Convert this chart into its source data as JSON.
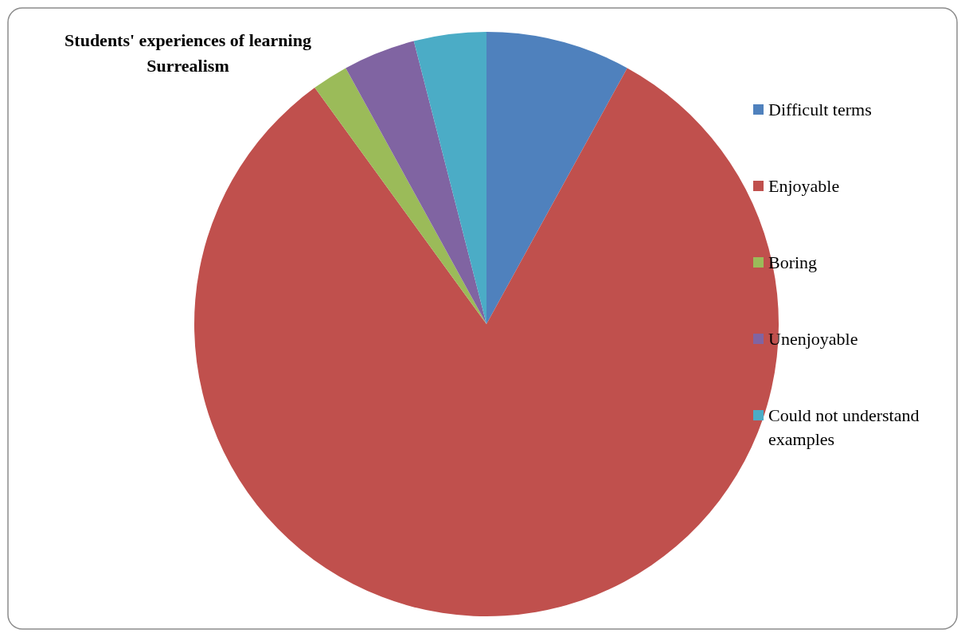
{
  "chart_data": {
    "type": "pie",
    "title": "Students' experiences of learning Surrealism",
    "categories": [
      "Difficult terms",
      "Enjoyable",
      "Boring",
      "Unenjoyable",
      "Could not understand examples"
    ],
    "values": [
      8,
      82,
      2,
      4,
      4
    ],
    "colors": [
      "#4f81bd",
      "#c0504d",
      "#9bbb59",
      "#8064a2",
      "#4bacc6"
    ],
    "legend": "right"
  }
}
